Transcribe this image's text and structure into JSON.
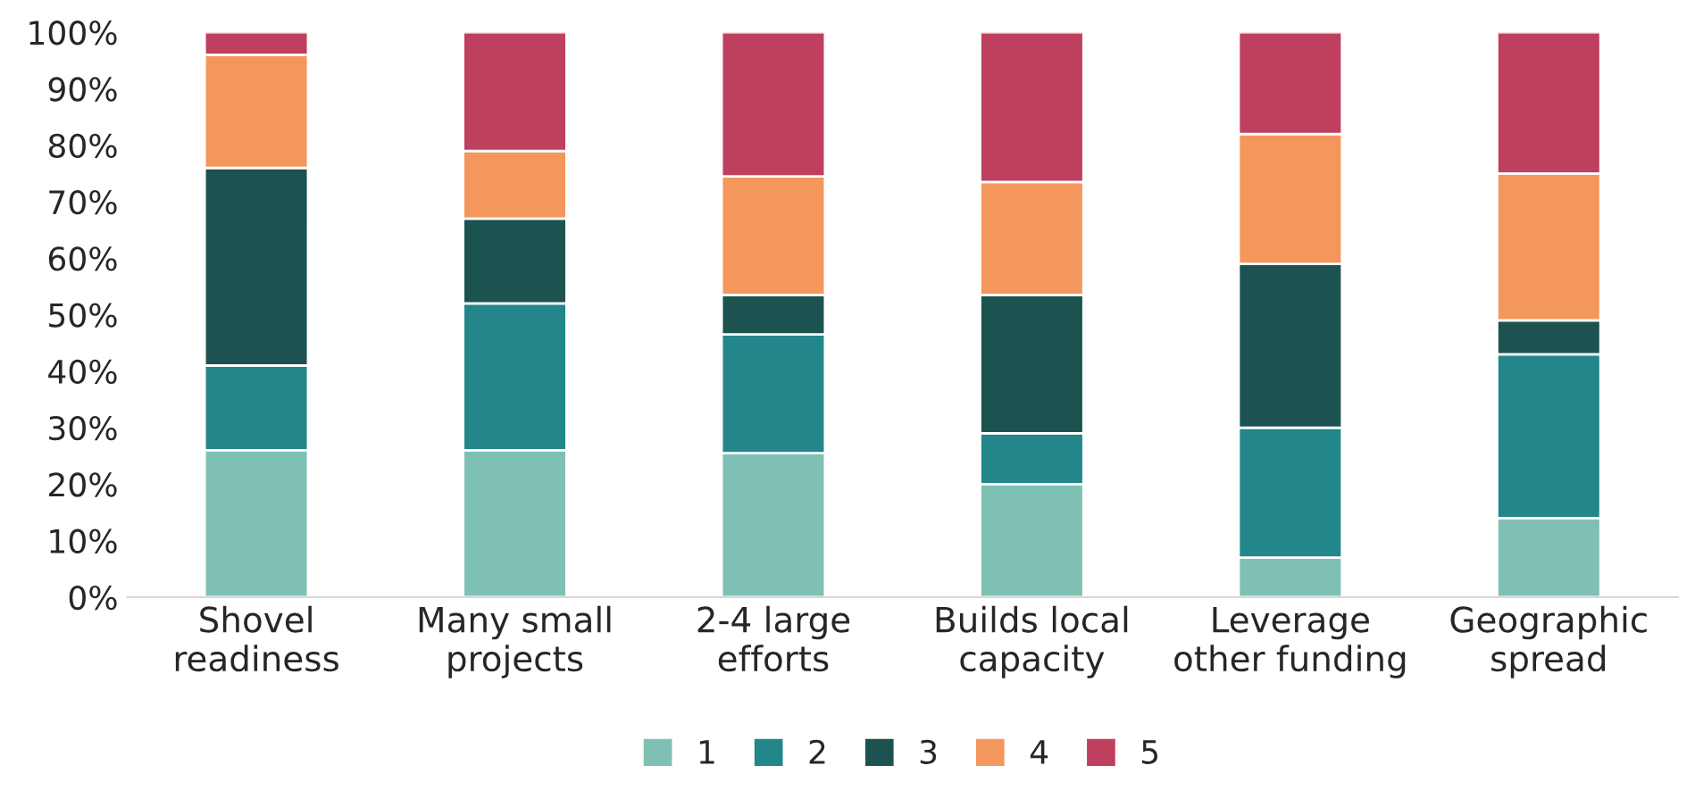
{
  "chart_data": {
    "type": "bar",
    "stacked": true,
    "categories": [
      "Shovel\nreadiness",
      "Many small\nprojects",
      "2-4 large\nefforts",
      "Builds local\ncapacity",
      "Leverage\nother funding",
      "Geographic\nspread"
    ],
    "series": [
      {
        "name": "1",
        "color": "#7fc0b4",
        "values": [
          26,
          26,
          25.5,
          20,
          7,
          14
        ]
      },
      {
        "name": "2",
        "color": "#23868a",
        "values": [
          15,
          26,
          21,
          9,
          23,
          29
        ]
      },
      {
        "name": "3",
        "color": "#1c5350",
        "values": [
          35,
          15,
          7,
          24.5,
          29,
          6
        ]
      },
      {
        "name": "4",
        "color": "#f4975d",
        "values": [
          20,
          12,
          21,
          20,
          23,
          26
        ]
      },
      {
        "name": "5",
        "color": "#bf3f5e",
        "values": [
          4,
          21,
          25.5,
          26.5,
          18,
          25
        ]
      }
    ],
    "ylim": [
      0,
      100
    ],
    "yticks": [
      {
        "value": 0,
        "label": "0%"
      },
      {
        "value": 10,
        "label": "10%"
      },
      {
        "value": 20,
        "label": "20%"
      },
      {
        "value": 30,
        "label": "30%"
      },
      {
        "value": 40,
        "label": "40%"
      },
      {
        "value": 50,
        "label": "50%"
      },
      {
        "value": 60,
        "label": "60%"
      },
      {
        "value": 70,
        "label": "70%"
      },
      {
        "value": 80,
        "label": "80%"
      },
      {
        "value": 90,
        "label": "90%"
      },
      {
        "value": 100,
        "label": "100%"
      }
    ],
    "grid": false,
    "legend": "bottom"
  }
}
